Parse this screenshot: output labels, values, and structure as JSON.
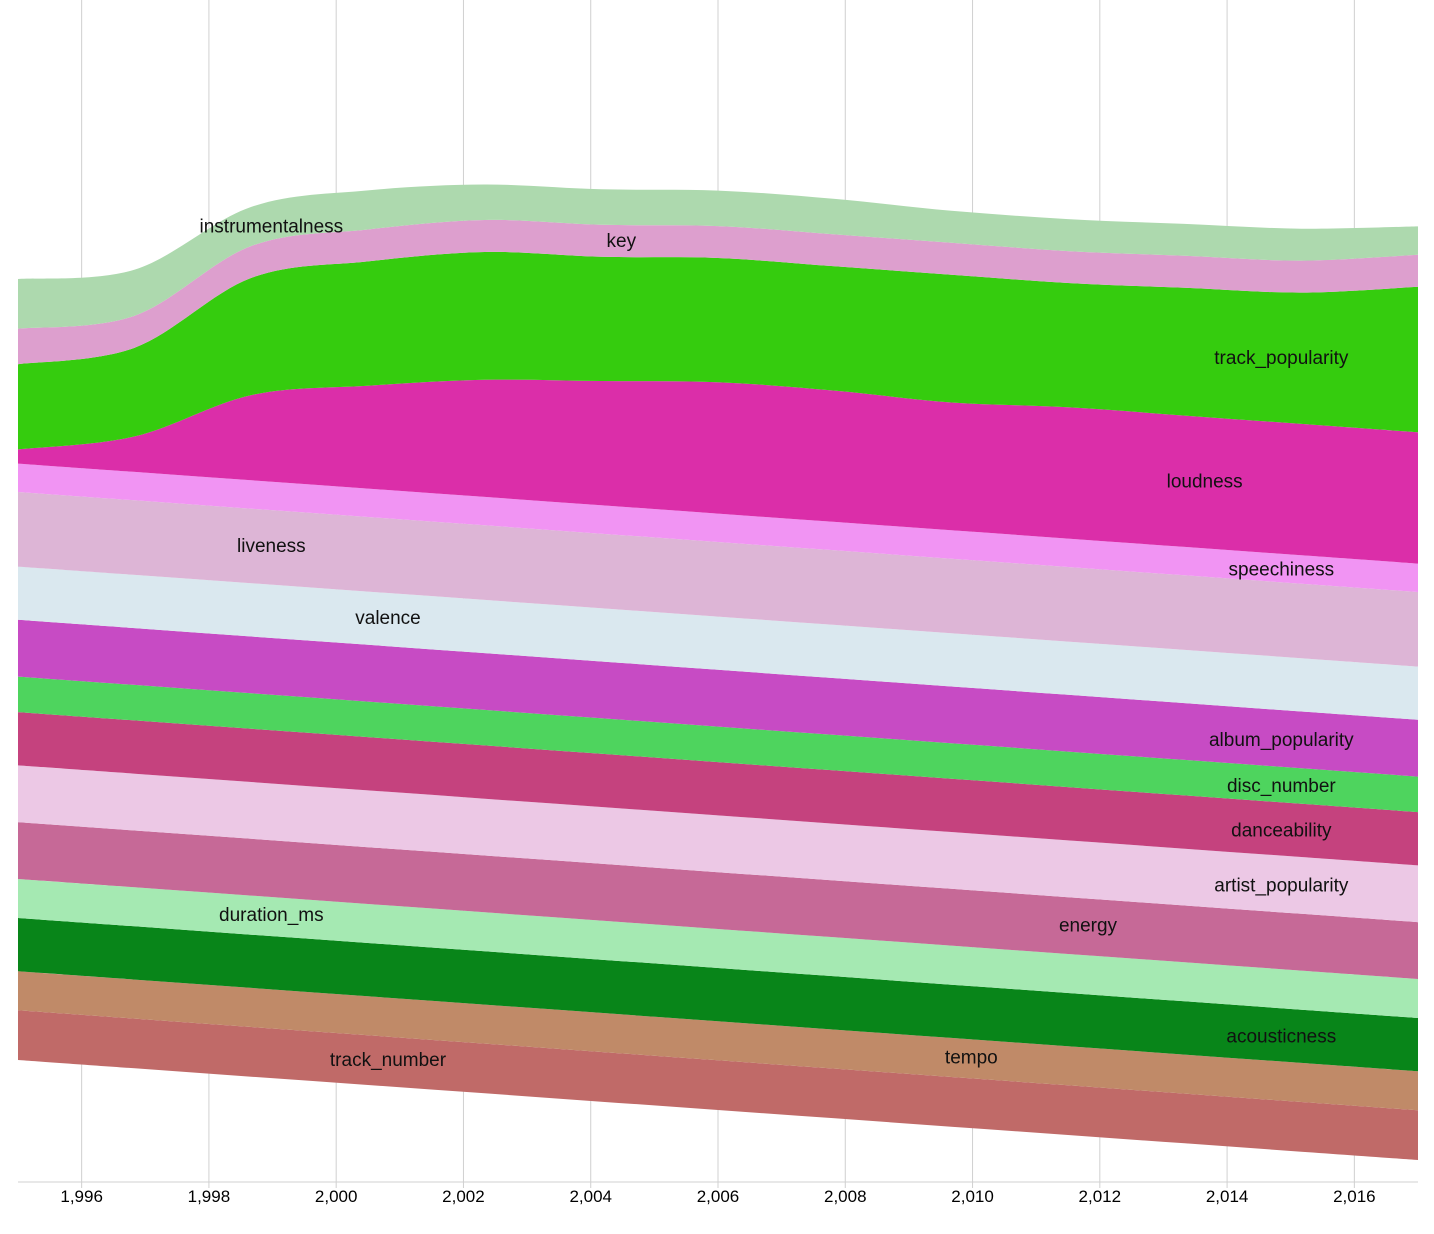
{
  "chart_data": {
    "type": "area",
    "stacked": true,
    "x_ticks": [
      "1,996",
      "1,998",
      "2,000",
      "2,002",
      "2,004",
      "2,006",
      "2,008",
      "2,010",
      "2,012",
      "2,014",
      "2,016"
    ],
    "xlim": [
      1995,
      2017
    ],
    "grid": true,
    "series": [
      {
        "name": "track_number",
        "color": "#c06a68",
        "values": [
          14,
          14,
          14,
          14,
          14,
          14,
          14,
          14,
          14,
          14,
          14,
          14,
          14
        ]
      },
      {
        "name": "tempo",
        "color": "#c08a68",
        "values": [
          11,
          11,
          11,
          11,
          11,
          11,
          11,
          11,
          11,
          11,
          11,
          11,
          11
        ]
      },
      {
        "name": "acousticness",
        "color": "#088519",
        "values": [
          15,
          15,
          15,
          15,
          15,
          15,
          15,
          15,
          15,
          15,
          15,
          15,
          15
        ]
      },
      {
        "name": "duration_ms",
        "color": "#a5e9b2",
        "values": [
          11,
          11,
          11,
          11,
          11,
          11,
          11,
          11,
          11,
          11,
          11,
          11,
          11
        ]
      },
      {
        "name": "energy",
        "color": "#c66997",
        "values": [
          16,
          16,
          16,
          16,
          16,
          16,
          16,
          16,
          16,
          16,
          16,
          16,
          16
        ]
      },
      {
        "name": "artist_popularity",
        "color": "#ecc8e5",
        "values": [
          16,
          16,
          16,
          16,
          16,
          16,
          16,
          16,
          16,
          16,
          16,
          16,
          16
        ]
      },
      {
        "name": "danceability",
        "color": "#c5427e",
        "values": [
          15,
          15,
          15,
          15,
          15,
          15,
          15,
          15,
          15,
          15,
          15,
          15,
          15
        ]
      },
      {
        "name": "disc_number",
        "color": "#4ed45e",
        "values": [
          10,
          10,
          10,
          10,
          10,
          10,
          10,
          10,
          10,
          10,
          10,
          10,
          10
        ]
      },
      {
        "name": "album_popularity",
        "color": "#c74bc4",
        "values": [
          16,
          16,
          16,
          16,
          16,
          16,
          16,
          16,
          16,
          16,
          16,
          16,
          16
        ]
      },
      {
        "name": "valence",
        "color": "#dae8ef",
        "values": [
          15,
          15,
          15,
          15,
          15,
          15,
          15,
          15,
          15,
          15,
          15,
          15,
          15
        ]
      },
      {
        "name": "liveness",
        "color": "#ddb5d6",
        "values": [
          21,
          21,
          21,
          21,
          21,
          21,
          21,
          21,
          21,
          21,
          21,
          21,
          21
        ]
      },
      {
        "name": "speechiness",
        "color": "#f194f3",
        "values": [
          8,
          8,
          8,
          8,
          8,
          8,
          8,
          8,
          8,
          8,
          8,
          8,
          8
        ]
      },
      {
        "name": "loudness",
        "color": "#db2ea9",
        "values": [
          4,
          10,
          24,
          29,
          33,
          35,
          37,
          37,
          36,
          37,
          37,
          37,
          37
        ]
      },
      {
        "name": "track_popularity",
        "color": "#35cc0e",
        "values": [
          24,
          25,
          33,
          35,
          36,
          35,
          35,
          35,
          36,
          35,
          36,
          37,
          41
        ]
      },
      {
        "name": "key",
        "color": "#dd9fce",
        "values": [
          10,
          9,
          9,
          9,
          9,
          9,
          9,
          9,
          9,
          9,
          9,
          9,
          9
        ]
      },
      {
        "name": "instrumentalness",
        "color": "#add9ae",
        "values": [
          14,
          13,
          11,
          11,
          10,
          10,
          10,
          10,
          9,
          9,
          9,
          9,
          8
        ]
      }
    ]
  }
}
